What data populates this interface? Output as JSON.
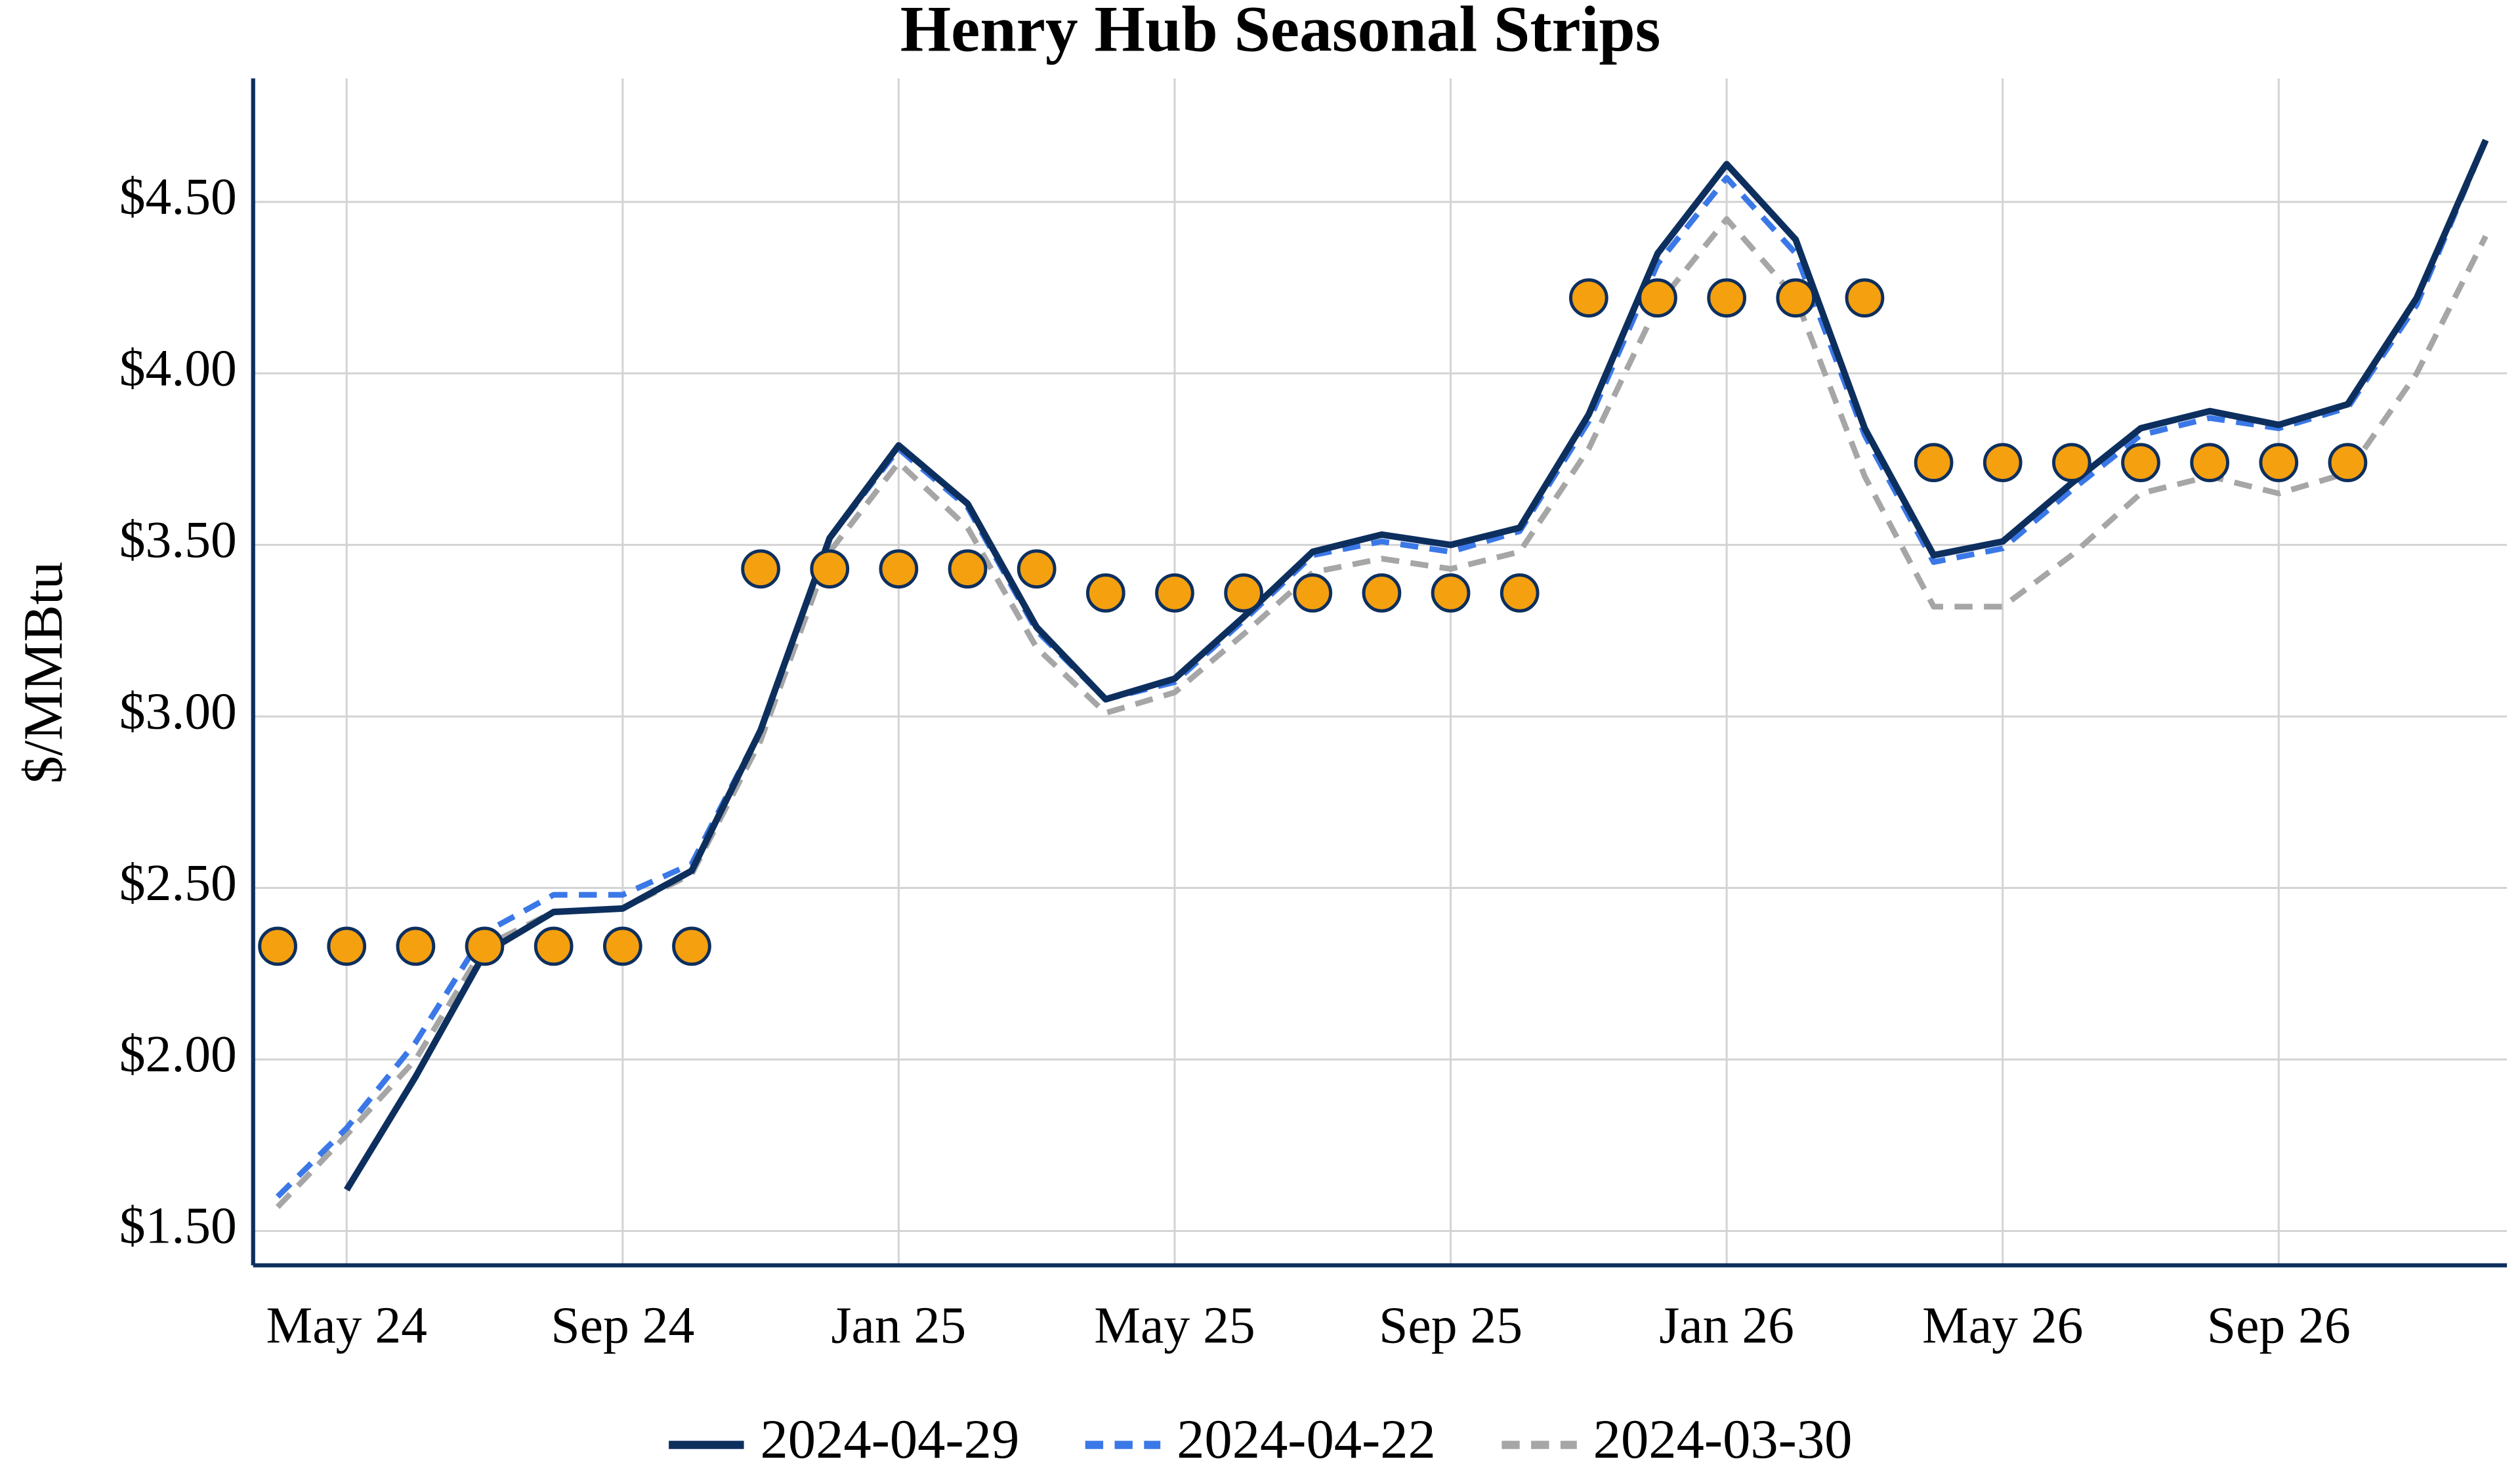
{
  "chart_data": {
    "type": "line",
    "title": "Henry Hub Seasonal Strips",
    "y_label": "$/MMBtu",
    "categories": [
      null,
      "May 24",
      null,
      null,
      null,
      "Sep 24",
      null,
      null,
      null,
      "Jan 25",
      null,
      null,
      null,
      "May 25",
      null,
      null,
      null,
      "Sep 25",
      null,
      null,
      null,
      "Jan 26",
      null,
      null,
      null,
      "May 26",
      null,
      null,
      null,
      "Sep 26",
      null,
      null,
      null
    ],
    "ylim": [
      1.4,
      4.86
    ],
    "yticks": [
      {
        "value": 1.5,
        "label": "$1.50"
      },
      {
        "value": 2.0,
        "label": "$2.00"
      },
      {
        "value": 2.5,
        "label": "$2.50"
      },
      {
        "value": 3.0,
        "label": "$3.00"
      },
      {
        "value": 3.5,
        "label": "$3.50"
      },
      {
        "value": 4.0,
        "label": "$4.00"
      },
      {
        "value": 4.5,
        "label": "$4.50"
      }
    ],
    "grid": true,
    "legend": "bottom",
    "series": [
      {
        "name": "2024-04-29",
        "color": "#0d2f5e",
        "dash": "solid",
        "values": [
          null,
          1.62,
          1.95,
          2.31,
          2.43,
          2.44,
          2.55,
          2.96,
          3.52,
          3.79,
          3.62,
          3.26,
          3.05,
          3.11,
          3.29,
          3.48,
          3.53,
          3.5,
          3.55,
          3.88,
          4.35,
          4.61,
          4.39,
          3.84,
          3.47,
          3.51,
          3.68,
          3.84,
          3.89,
          3.85,
          3.91,
          4.22,
          4.68
        ]
      },
      {
        "name": "2024-04-22",
        "color": "#3b78e7",
        "dash": "dashed",
        "values": [
          1.6,
          1.8,
          2.05,
          2.37,
          2.48,
          2.48,
          2.57,
          2.96,
          3.52,
          3.78,
          3.61,
          3.25,
          3.05,
          3.1,
          3.28,
          3.47,
          3.51,
          3.48,
          3.54,
          3.86,
          4.32,
          4.57,
          4.35,
          3.82,
          3.45,
          3.49,
          3.66,
          3.82,
          3.87,
          3.84,
          3.9,
          4.2,
          4.68
        ]
      },
      {
        "name": "2024-03-30",
        "color": "#a6a6a6",
        "dash": "dashed",
        "values": [
          1.57,
          1.78,
          2.0,
          2.33,
          2.43,
          2.44,
          2.54,
          2.93,
          3.48,
          3.74,
          3.55,
          3.2,
          3.01,
          3.07,
          3.24,
          3.42,
          3.46,
          3.43,
          3.48,
          3.78,
          4.2,
          4.45,
          4.22,
          3.7,
          3.32,
          3.32,
          3.47,
          3.65,
          3.7,
          3.65,
          3.71,
          4.0,
          4.4
        ]
      },
      {
        "color": "#f5a00f",
        "marker": "circle",
        "edge_color": "#0d2f5e",
        "values": [
          2.33,
          2.33,
          2.33,
          2.33,
          2.33,
          2.33,
          2.33,
          3.43,
          3.43,
          3.43,
          3.43,
          3.43,
          3.36,
          3.36,
          3.36,
          3.36,
          3.36,
          3.36,
          3.36,
          4.22,
          4.22,
          4.22,
          4.22,
          4.22,
          3.74,
          3.74,
          3.74,
          3.74,
          3.74,
          3.74,
          3.74,
          null,
          null
        ]
      }
    ]
  }
}
